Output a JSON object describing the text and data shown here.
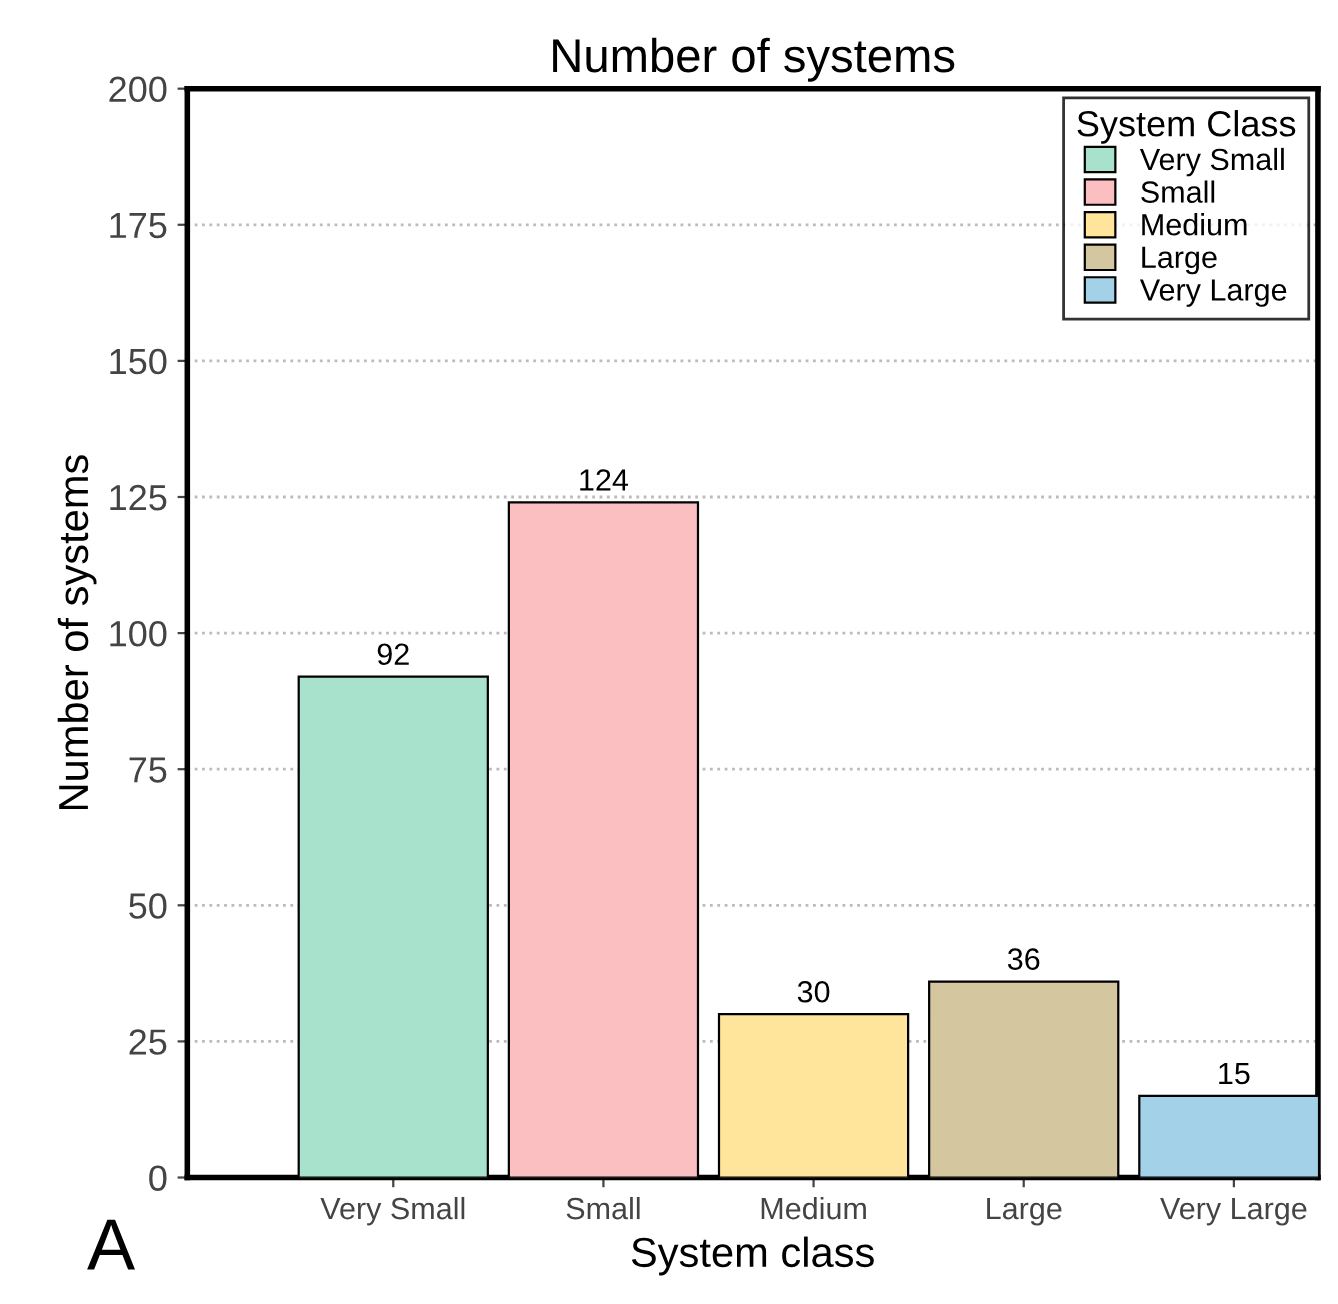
{
  "chart_data": {
    "type": "bar",
    "title": "Number of systems",
    "xlabel": "System class",
    "ylabel": "Number of systems",
    "legend_title": "System Class",
    "categories": [
      "Very Small",
      "Small",
      "Medium",
      "Large",
      "Very Large"
    ],
    "series": [
      {
        "name": "Very Small",
        "color": "#a8e2cc",
        "values": [
          92,
          null,
          null,
          null,
          null
        ]
      },
      {
        "name": "Small",
        "color": "#fbbfc1",
        "values": [
          null,
          124,
          null,
          null,
          null
        ]
      },
      {
        "name": "Medium",
        "color": "#fee59b",
        "values": [
          null,
          null,
          30,
          null,
          null
        ]
      },
      {
        "name": "Large",
        "color": "#d4c7a0",
        "values": [
          null,
          null,
          null,
          36,
          null
        ]
      },
      {
        "name": "Very Large",
        "color": "#a3d1e7",
        "values": [
          null,
          null,
          null,
          null,
          15
        ]
      }
    ],
    "ylim": [
      0,
      200
    ],
    "yticks": [
      0,
      25,
      50,
      75,
      100,
      125,
      150,
      175,
      200
    ],
    "grid": "y",
    "legend": "top right",
    "data_labels": true,
    "annotations": [
      "A"
    ]
  }
}
